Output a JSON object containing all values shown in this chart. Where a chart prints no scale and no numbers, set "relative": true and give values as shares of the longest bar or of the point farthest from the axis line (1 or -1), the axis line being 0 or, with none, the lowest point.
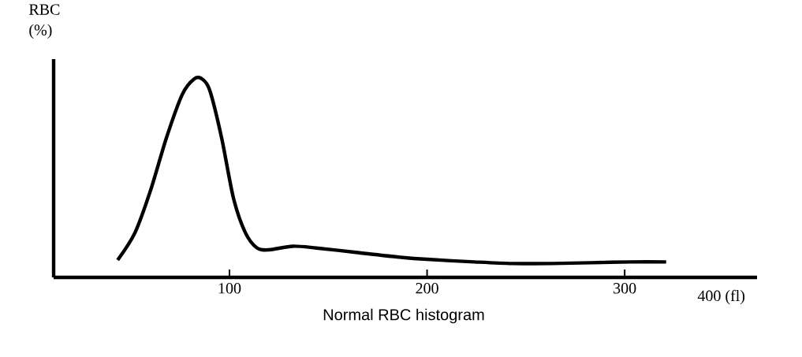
{
  "chart_data": {
    "type": "line",
    "title": "Normal RBC histogram",
    "xlabel": "400 (fl)",
    "ylabel": "RBC (%)",
    "relative": true,
    "x": [
      43.4,
      52.2,
      60.2,
      68.1,
      76.1,
      82.1,
      86.1,
      90.0,
      96.0,
      102,
      108,
      114,
      120,
      132,
      144,
      164,
      184,
      200,
      224,
      243,
      263,
      283,
      303,
      321
    ],
    "values": [
      0.087,
      0.226,
      0.443,
      0.704,
      0.922,
      1.0,
      1.0,
      0.943,
      0.704,
      0.4,
      0.226,
      0.148,
      0.139,
      0.157,
      0.148,
      0.126,
      0.104,
      0.091,
      0.078,
      0.07,
      0.07,
      0.074,
      0.078,
      0.078
    ],
    "color": "#000000",
    "xlim": [
      11,
      367
    ],
    "xticks": [
      100,
      200,
      300
    ],
    "grid": false,
    "marker": "none"
  }
}
